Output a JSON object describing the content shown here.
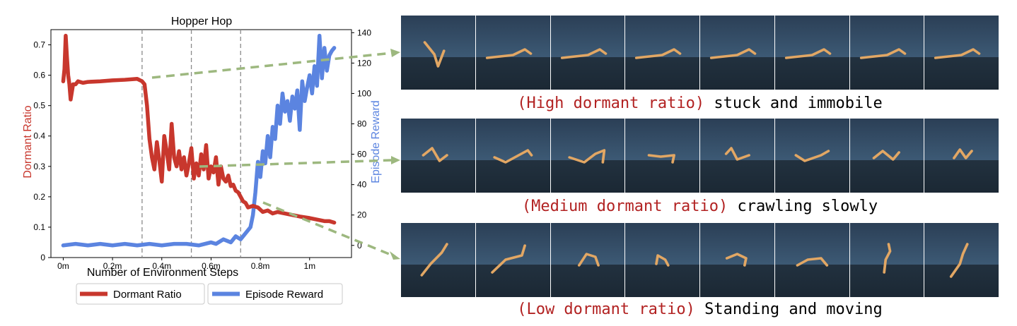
{
  "chart_data": {
    "type": "line",
    "title": "Hopper Hop",
    "xlabel": "Number of Environment Steps",
    "ylabel_left": "Dormant Ratio",
    "ylabel_right": "Episode Reward",
    "x_ticks": [
      "0m",
      "0.2m",
      "0.4m",
      "0.6m",
      "0.8m",
      "1m"
    ],
    "x_tick_values": [
      0,
      0.2,
      0.4,
      0.6,
      0.8,
      1.0
    ],
    "xlim": [
      -0.05,
      1.17
    ],
    "y_left_ticks": [
      "0",
      "0.1",
      "0.2",
      "0.3",
      "0.4",
      "0.5",
      "0.6",
      "0.7"
    ],
    "y_left_lim": [
      0,
      0.75
    ],
    "y_right_ticks": [
      "0",
      "20",
      "40",
      "60",
      "80",
      "100",
      "120",
      "140"
    ],
    "y_right_lim": [
      -8,
      142
    ],
    "vlines": [
      0.32,
      0.52,
      0.72
    ],
    "legend": [
      "Dormant Ratio",
      "Episode Reward"
    ],
    "legend_position": "bottom",
    "colors": {
      "dormant": "#c8372d",
      "reward": "#5b84e0",
      "arrow": "#9db87f"
    },
    "series": [
      {
        "name": "Dormant Ratio",
        "axis": "left",
        "x": [
          0,
          0.005,
          0.01,
          0.015,
          0.02,
          0.025,
          0.03,
          0.04,
          0.05,
          0.06,
          0.08,
          0.1,
          0.15,
          0.2,
          0.25,
          0.3,
          0.32,
          0.33,
          0.34,
          0.35,
          0.36,
          0.37,
          0.38,
          0.39,
          0.4,
          0.41,
          0.42,
          0.43,
          0.44,
          0.45,
          0.46,
          0.47,
          0.48,
          0.49,
          0.5,
          0.51,
          0.52,
          0.53,
          0.54,
          0.55,
          0.56,
          0.57,
          0.58,
          0.59,
          0.6,
          0.61,
          0.62,
          0.63,
          0.64,
          0.65,
          0.66,
          0.67,
          0.68,
          0.69,
          0.7,
          0.71,
          0.72,
          0.73,
          0.74,
          0.75,
          0.77,
          0.79,
          0.81,
          0.83,
          0.85,
          0.87,
          0.9,
          0.93,
          0.96,
          1.0,
          1.03,
          1.06,
          1.08,
          1.1
        ],
        "y": [
          0.58,
          0.62,
          0.73,
          0.66,
          0.6,
          0.57,
          0.52,
          0.57,
          0.57,
          0.58,
          0.575,
          0.578,
          0.58,
          0.583,
          0.585,
          0.588,
          0.58,
          0.57,
          0.5,
          0.39,
          0.33,
          0.29,
          0.38,
          0.32,
          0.25,
          0.4,
          0.35,
          0.29,
          0.44,
          0.33,
          0.3,
          0.35,
          0.29,
          0.33,
          0.27,
          0.31,
          0.36,
          0.26,
          0.31,
          0.27,
          0.34,
          0.29,
          0.37,
          0.26,
          0.3,
          0.28,
          0.33,
          0.24,
          0.3,
          0.26,
          0.25,
          0.27,
          0.235,
          0.24,
          0.22,
          0.215,
          0.2,
          0.185,
          0.18,
          0.165,
          0.17,
          0.165,
          0.15,
          0.155,
          0.145,
          0.15,
          0.145,
          0.14,
          0.135,
          0.13,
          0.125,
          0.12,
          0.12,
          0.115
        ]
      },
      {
        "name": "Episode Reward",
        "axis": "right",
        "x": [
          0,
          0.05,
          0.1,
          0.15,
          0.2,
          0.25,
          0.3,
          0.35,
          0.4,
          0.45,
          0.5,
          0.55,
          0.6,
          0.62,
          0.65,
          0.68,
          0.7,
          0.72,
          0.74,
          0.76,
          0.77,
          0.78,
          0.79,
          0.8,
          0.81,
          0.82,
          0.83,
          0.84,
          0.85,
          0.86,
          0.87,
          0.88,
          0.89,
          0.9,
          0.91,
          0.92,
          0.93,
          0.94,
          0.95,
          0.96,
          0.97,
          0.98,
          0.99,
          1.0,
          1.01,
          1.02,
          1.03,
          1.04,
          1.05,
          1.06,
          1.07,
          1.08,
          1.09,
          1.1
        ],
        "y": [
          0,
          1,
          0,
          1,
          0,
          1,
          0,
          1,
          0,
          1,
          1,
          0,
          2,
          1,
          4,
          2,
          6,
          4,
          8,
          12,
          20,
          35,
          55,
          45,
          62,
          54,
          72,
          58,
          78,
          70,
          92,
          80,
          100,
          88,
          95,
          82,
          98,
          90,
          102,
          76,
          108,
          95,
          104,
          112,
          100,
          118,
          105,
          138,
          110,
          130,
          115,
          125,
          128,
          130
        ]
      }
    ]
  },
  "captions": [
    {
      "accent": "(High dormant ratio)",
      "text": " stuck and immobile"
    },
    {
      "accent": "(Medium dormant ratio)",
      "text": " crawling slowly"
    },
    {
      "accent": "(Low dormant ratio)",
      "text": " Standing and moving"
    }
  ]
}
